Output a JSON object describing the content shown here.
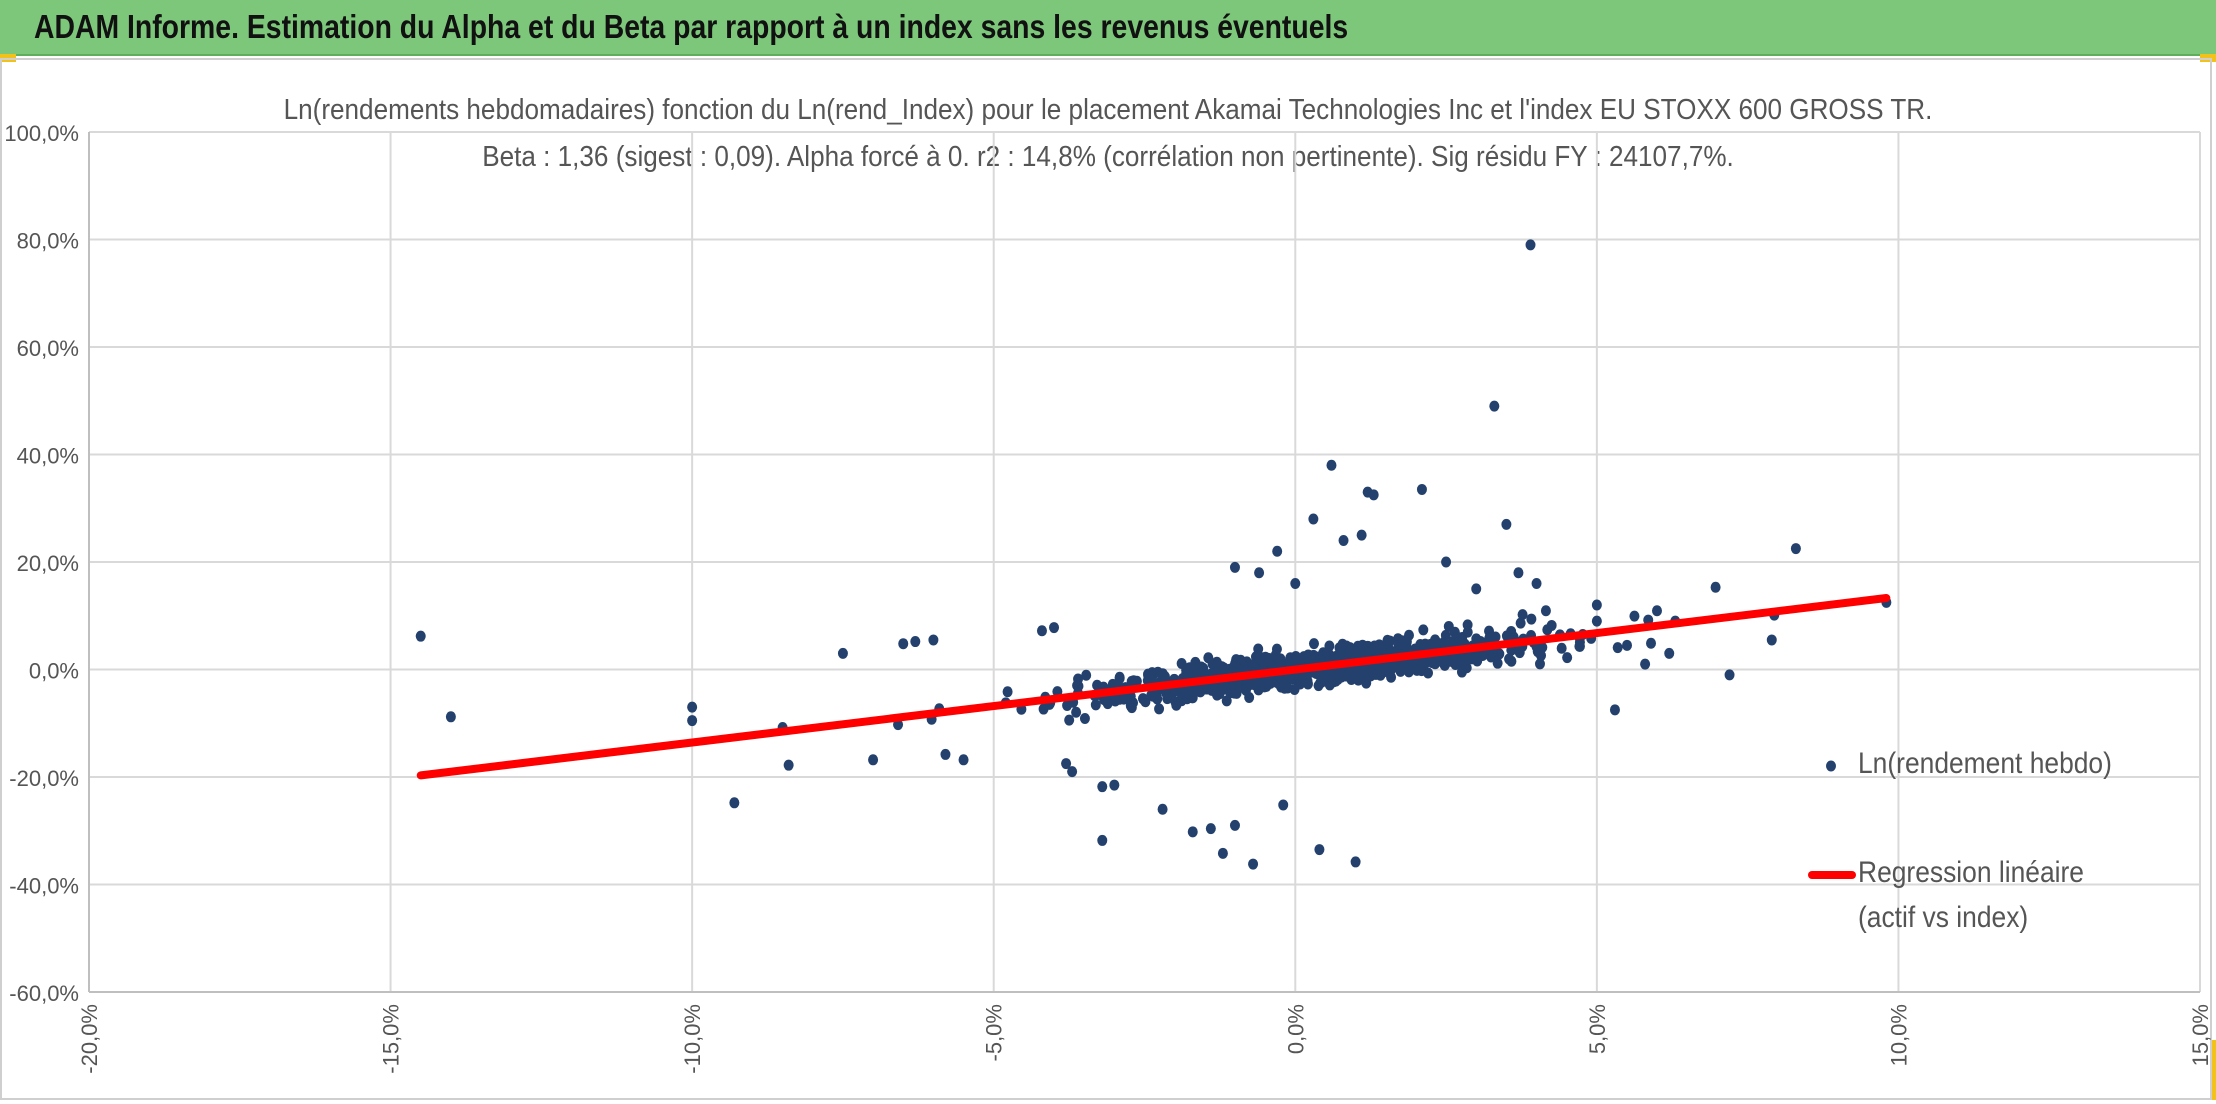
{
  "banner": {
    "title": "ADAM Informe. Estimation du Alpha et du Beta par rapport à un index sans les revenus éventuels",
    "color": "#7dc77b"
  },
  "chart_data": {
    "type": "scatter",
    "title_line1": "Ln(rendements hebdomadaires) fonction du Ln(rend_Index) pour le placement Akamai Technologies Inc et l'index EU STOXX 600 GROSS TR.",
    "title_line2": "Beta : 1,36 (sigest : 0,09). Alpha forcé à 0. r2 : 14,8% (corrélation non pertinente). Sig résidu FY : 24107,7%.",
    "xlim": [
      -0.2,
      0.15
    ],
    "ylim": [
      -0.6,
      1.0
    ],
    "x_ticks": [
      -0.2,
      -0.15,
      -0.1,
      -0.05,
      0.0,
      0.05,
      0.1,
      0.15
    ],
    "x_tick_labels": [
      "-20,0%",
      "-15,0%",
      "-10,0%",
      "-5,0%",
      "0,0%",
      "5,0%",
      "10,0%",
      "15,0%"
    ],
    "y_ticks": [
      1.0,
      0.8,
      0.6,
      0.4,
      0.2,
      0.0,
      -0.2,
      -0.4,
      -0.6
    ],
    "y_tick_labels": [
      "100,0%",
      "80,0%",
      "60,0%",
      "40,0%",
      "20,0%",
      "0,0%",
      "-20,0%",
      "-40,0%",
      "-60,0%"
    ],
    "grid": true,
    "legend_position": "right",
    "series": [
      {
        "name": "Ln(rendement hebdo)",
        "kind": "scatter",
        "color": "#24416e",
        "outliers": [
          [
            -0.145,
            0.062
          ],
          [
            -0.14,
            -0.088
          ],
          [
            -0.1,
            -0.07
          ],
          [
            -0.1,
            -0.095
          ],
          [
            -0.093,
            -0.248
          ],
          [
            -0.085,
            -0.108
          ],
          [
            -0.084,
            -0.178
          ],
          [
            -0.075,
            0.03
          ],
          [
            -0.07,
            -0.168
          ],
          [
            -0.065,
            0.048
          ],
          [
            -0.063,
            0.052
          ],
          [
            -0.06,
            0.055
          ],
          [
            -0.058,
            -0.158
          ],
          [
            -0.055,
            -0.168
          ],
          [
            -0.048,
            -0.062
          ],
          [
            -0.042,
            0.072
          ],
          [
            -0.04,
            0.078
          ],
          [
            -0.038,
            -0.175
          ],
          [
            -0.037,
            -0.19
          ],
          [
            -0.032,
            -0.218
          ],
          [
            -0.032,
            -0.318
          ],
          [
            -0.03,
            -0.215
          ],
          [
            -0.022,
            -0.26
          ],
          [
            -0.017,
            -0.302
          ],
          [
            -0.014,
            -0.296
          ],
          [
            -0.012,
            -0.342
          ],
          [
            -0.01,
            -0.29
          ],
          [
            -0.01,
            0.19
          ],
          [
            -0.007,
            -0.362
          ],
          [
            -0.006,
            0.18
          ],
          [
            -0.003,
            0.22
          ],
          [
            -0.002,
            -0.252
          ],
          [
            0.0,
            0.16
          ],
          [
            0.003,
            0.28
          ],
          [
            0.004,
            -0.335
          ],
          [
            0.006,
            0.38
          ],
          [
            0.008,
            0.24
          ],
          [
            0.01,
            -0.358
          ],
          [
            0.011,
            0.25
          ],
          [
            0.012,
            0.33
          ],
          [
            0.013,
            0.325
          ],
          [
            0.021,
            0.335
          ],
          [
            0.025,
            0.2
          ],
          [
            0.03,
            0.15
          ],
          [
            0.033,
            0.49
          ],
          [
            0.035,
            0.27
          ],
          [
            0.037,
            0.18
          ],
          [
            0.039,
            0.79
          ],
          [
            0.04,
            0.16
          ],
          [
            0.05,
            0.12
          ],
          [
            0.05,
            0.09
          ],
          [
            0.053,
            -0.075
          ],
          [
            0.055,
            0.045
          ],
          [
            0.058,
            0.01
          ],
          [
            0.062,
            0.03
          ],
          [
            0.063,
            0.09
          ],
          [
            0.072,
            -0.01
          ],
          [
            0.079,
            0.055
          ],
          [
            0.083,
            0.225
          ],
          [
            0.098,
            0.125
          ]
        ],
        "cloud": {
          "count": 1140,
          "x_center": 0.003,
          "x_sd": 0.016,
          "beta": 1.36,
          "resid_sd": 0.055
        }
      },
      {
        "name": "Regression linéaire (actif vs index)",
        "kind": "line",
        "color": "#ff0000",
        "x": [
          -0.145,
          0.098
        ],
        "y": [
          -0.197,
          0.133
        ]
      }
    ],
    "legend": {
      "scatter_label": "Ln(rendement hebdo)",
      "line_label_1": "Regression linéaire",
      "line_label_2": "(actif vs index)"
    }
  }
}
